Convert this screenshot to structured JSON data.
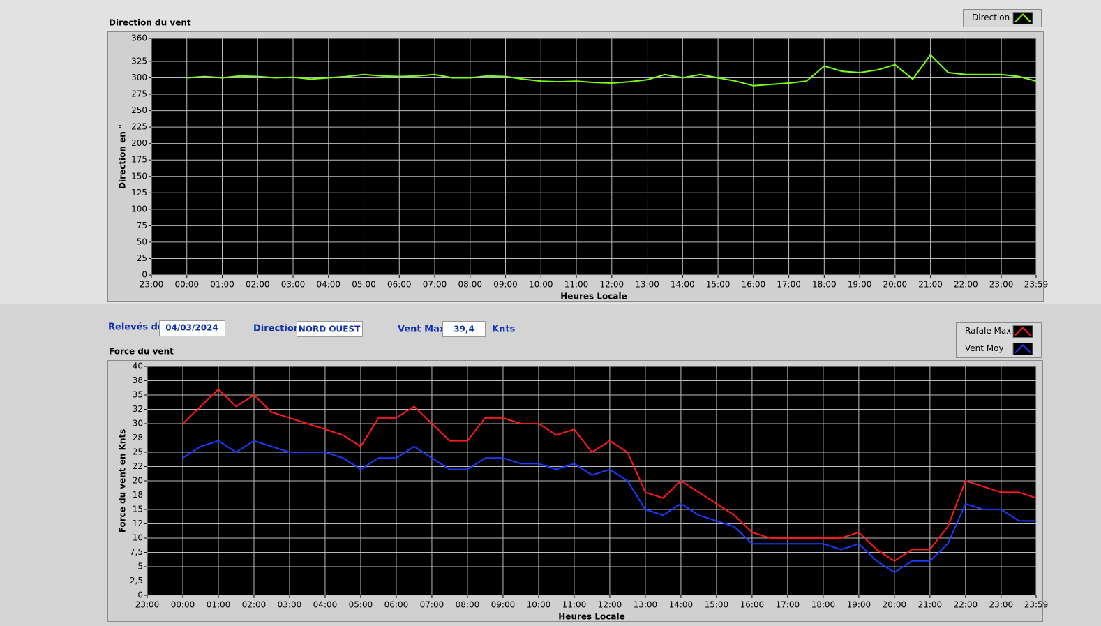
{
  "chart_data": [
    {
      "type": "line",
      "title": "Direction du vent",
      "x_label": "Heures Locale",
      "y_label": "Direction en °",
      "x": [
        0,
        30,
        60,
        90,
        120,
        150,
        180,
        210,
        240,
        270,
        300,
        330,
        360,
        390,
        420,
        450,
        480,
        510,
        540,
        570,
        600,
        630,
        660,
        690,
        720,
        750,
        780,
        810,
        840,
        870,
        900,
        930,
        960,
        990,
        1020,
        1050,
        1080,
        1110,
        1140,
        1170,
        1200,
        1230,
        1260,
        1290,
        1320,
        1350,
        1380,
        1410,
        1439
      ],
      "xlim": [
        -60,
        1439
      ],
      "xticks": [
        {
          "value": -60,
          "label": "23:00"
        },
        {
          "value": 0,
          "label": "00:00"
        },
        {
          "value": 60,
          "label": "01:00"
        },
        {
          "value": 120,
          "label": "02:00"
        },
        {
          "value": 180,
          "label": "03:00"
        },
        {
          "value": 240,
          "label": "04:00"
        },
        {
          "value": 300,
          "label": "05:00"
        },
        {
          "value": 360,
          "label": "06:00"
        },
        {
          "value": 420,
          "label": "07:00"
        },
        {
          "value": 480,
          "label": "08:00"
        },
        {
          "value": 540,
          "label": "09:00"
        },
        {
          "value": 600,
          "label": "10:00"
        },
        {
          "value": 660,
          "label": "11:00"
        },
        {
          "value": 720,
          "label": "12:00"
        },
        {
          "value": 780,
          "label": "13:00"
        },
        {
          "value": 840,
          "label": "14:00"
        },
        {
          "value": 900,
          "label": "15:00"
        },
        {
          "value": 960,
          "label": "16:00"
        },
        {
          "value": 1020,
          "label": "17:00"
        },
        {
          "value": 1080,
          "label": "18:00"
        },
        {
          "value": 1140,
          "label": "19:00"
        },
        {
          "value": 1200,
          "label": "20:00"
        },
        {
          "value": 1260,
          "label": "21:00"
        },
        {
          "value": 1320,
          "label": "22:00"
        },
        {
          "value": 1380,
          "label": "23:00"
        },
        {
          "value": 1439,
          "label": "23:59"
        }
      ],
      "ylim": [
        0,
        360
      ],
      "yticks": [
        0,
        25,
        50,
        75,
        100,
        125,
        150,
        175,
        200,
        225,
        250,
        275,
        300,
        325,
        360
      ],
      "grid": true,
      "legend": "top-right",
      "series": [
        {
          "name": "Direction",
          "color": "#7cfc1c",
          "values": [
            300,
            302,
            300,
            303,
            302,
            300,
            301,
            298,
            300,
            302,
            305,
            303,
            302,
            303,
            305,
            300,
            300,
            303,
            302,
            298,
            295,
            294,
            295,
            293,
            292,
            294,
            297,
            305,
            300,
            305,
            300,
            295,
            288,
            290,
            292,
            295,
            318,
            310,
            308,
            312,
            320,
            298,
            335,
            308,
            305,
            305,
            305,
            302,
            295
          ]
        }
      ]
    },
    {
      "type": "line",
      "title": "Force du vent",
      "x_label": "Heures Locale",
      "y_label": "Force du vent en Knts",
      "x": [
        0,
        30,
        60,
        90,
        120,
        150,
        180,
        210,
        240,
        270,
        300,
        330,
        360,
        390,
        420,
        450,
        480,
        510,
        540,
        570,
        600,
        630,
        660,
        690,
        720,
        750,
        780,
        810,
        840,
        870,
        900,
        930,
        960,
        990,
        1020,
        1050,
        1080,
        1110,
        1140,
        1170,
        1200,
        1230,
        1260,
        1290,
        1320,
        1350,
        1380,
        1410,
        1439
      ],
      "xlim": [
        -60,
        1439
      ],
      "xticks": [
        {
          "value": -60,
          "label": "23:00"
        },
        {
          "value": 0,
          "label": "00:00"
        },
        {
          "value": 60,
          "label": "01:00"
        },
        {
          "value": 120,
          "label": "02:00"
        },
        {
          "value": 180,
          "label": "03:00"
        },
        {
          "value": 240,
          "label": "04:00"
        },
        {
          "value": 300,
          "label": "05:00"
        },
        {
          "value": 360,
          "label": "06:00"
        },
        {
          "value": 420,
          "label": "07:00"
        },
        {
          "value": 480,
          "label": "08:00"
        },
        {
          "value": 540,
          "label": "09:00"
        },
        {
          "value": 600,
          "label": "10:00"
        },
        {
          "value": 660,
          "label": "11:00"
        },
        {
          "value": 720,
          "label": "12:00"
        },
        {
          "value": 780,
          "label": "13:00"
        },
        {
          "value": 840,
          "label": "14:00"
        },
        {
          "value": 900,
          "label": "15:00"
        },
        {
          "value": 960,
          "label": "16:00"
        },
        {
          "value": 1020,
          "label": "17:00"
        },
        {
          "value": 1080,
          "label": "18:00"
        },
        {
          "value": 1140,
          "label": "19:00"
        },
        {
          "value": 1200,
          "label": "20:00"
        },
        {
          "value": 1260,
          "label": "21:00"
        },
        {
          "value": 1320,
          "label": "22:00"
        },
        {
          "value": 1380,
          "label": "23:00"
        },
        {
          "value": 1439,
          "label": "23:59"
        }
      ],
      "ylim": [
        0,
        40
      ],
      "yticks": [
        0,
        {
          "value": 2.5,
          "label": "2,5"
        },
        5,
        {
          "value": 7.5,
          "label": "7,5"
        },
        10,
        {
          "value": 12.5,
          "label": "12"
        },
        15,
        {
          "value": 17.5,
          "label": "18"
        },
        20,
        {
          "value": 22.5,
          "label": "22"
        },
        25,
        {
          "value": 27.5,
          "label": "28"
        },
        30,
        {
          "value": 32.5,
          "label": "32"
        },
        35,
        {
          "value": 37.5,
          "label": "38"
        },
        40
      ],
      "grid": true,
      "legend": "top-right",
      "series": [
        {
          "name": "Rafale Max",
          "color": "#ff1a1a",
          "values": [
            30,
            33,
            36,
            33,
            35,
            32,
            31,
            30,
            29,
            28,
            26,
            31,
            31,
            33,
            30,
            27,
            27,
            31,
            31,
            30,
            30,
            28,
            29,
            25,
            27,
            25,
            18,
            17,
            20,
            18,
            16,
            14,
            11,
            10,
            10,
            10,
            10,
            10,
            11,
            8,
            6,
            8,
            8,
            12,
            20,
            19,
            18,
            18,
            17
          ]
        },
        {
          "name": "Vent Moy",
          "color": "#1a3cff",
          "values": [
            24,
            26,
            27,
            25,
            27,
            26,
            25,
            25,
            25,
            24,
            22,
            24,
            24,
            26,
            24,
            22,
            22,
            24,
            24,
            23,
            23,
            22,
            23,
            21,
            22,
            20,
            15,
            14,
            16,
            14,
            13,
            12,
            9,
            9,
            9,
            9,
            9,
            8,
            9,
            6,
            4,
            6,
            6,
            9,
            16,
            15,
            15,
            13,
            13
          ]
        }
      ]
    }
  ],
  "form": {
    "date_label": "Relevés du",
    "date": "04/03/2024",
    "direction_label": "Direction",
    "direction": "NORD OUEST",
    "max_label": "Vent Max",
    "max": "39,4",
    "unit": "Knts"
  }
}
